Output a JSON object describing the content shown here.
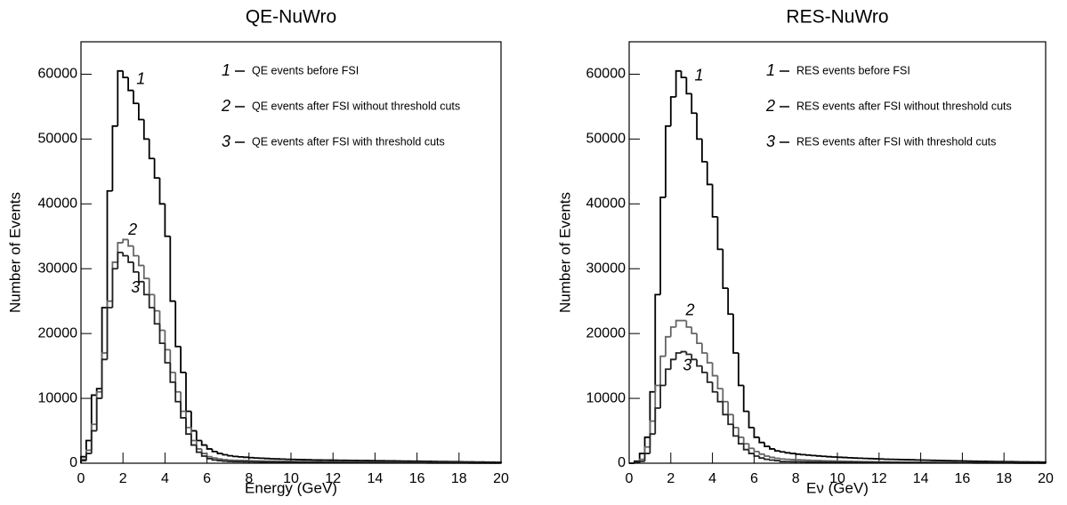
{
  "chart_data": [
    {
      "type": "histogram",
      "title": "QE-NuWro",
      "xlabel": "Energy (GeV)",
      "ylabel": "Number of Events",
      "xlim": [
        0,
        20
      ],
      "ylim": [
        0,
        65000
      ],
      "xticks": [
        0,
        2,
        4,
        6,
        8,
        10,
        12,
        14,
        16,
        18,
        20
      ],
      "yticks": [
        0,
        10000,
        20000,
        30000,
        40000,
        50000,
        60000
      ],
      "bins": [
        0,
        0.25,
        0.5,
        0.75,
        1,
        1.25,
        1.5,
        1.75,
        2,
        2.25,
        2.5,
        2.75,
        3,
        3.25,
        3.5,
        3.75,
        4,
        4.25,
        4.5,
        4.75,
        5,
        5.25,
        5.5,
        5.75,
        6,
        6.25,
        6.5,
        6.75,
        7,
        7.25,
        7.5,
        7.75,
        8,
        8.25,
        8.5,
        8.75,
        9,
        9.25,
        9.5,
        9.75,
        10,
        10.25,
        10.5,
        10.75,
        11,
        11.25,
        11.5,
        11.75,
        12,
        12.25,
        12.5,
        12.75,
        13,
        13.25,
        13.5,
        13.75,
        14,
        14.25,
        14.5,
        14.75,
        15,
        15.25,
        15.5,
        15.75,
        16,
        16.25,
        16.5,
        16.75,
        17,
        17.25,
        17.5,
        17.75,
        18,
        18.25,
        18.5,
        18.75,
        19,
        19.25,
        19.5,
        19.75,
        20
      ],
      "series": [
        {
          "name": "QE events before FSI",
          "label": "1",
          "color": "#000000",
          "values": [
            1000,
            3500,
            10500,
            11500,
            24000,
            42000,
            52000,
            60500,
            59500,
            57500,
            55500,
            53000,
            50000,
            47000,
            44000,
            40000,
            35000,
            25000,
            18000,
            14000,
            8000,
            5000,
            3500,
            2800,
            2200,
            1800,
            1500,
            1300,
            1150,
            1050,
            980,
            920,
            860,
            810,
            770,
            730,
            690,
            660,
            630,
            600,
            580,
            560,
            540,
            520,
            500,
            490,
            480,
            470,
            460,
            450,
            440,
            430,
            420,
            410,
            400,
            390,
            380,
            370,
            360,
            350,
            340,
            330,
            320,
            310,
            300,
            290,
            280,
            270,
            260,
            250,
            240,
            230,
            220,
            210,
            200,
            190,
            180,
            170,
            160,
            150
          ]
        },
        {
          "name": "QE events after FSI without threshold cuts",
          "label": "2",
          "color": "#666666",
          "values": [
            600,
            2000,
            6000,
            11000,
            17000,
            25000,
            31000,
            34000,
            34500,
            33500,
            32000,
            30500,
            28500,
            26000,
            23500,
            20500,
            17500,
            14000,
            11000,
            8000,
            5500,
            3500,
            2200,
            1500,
            1000,
            800,
            650,
            550,
            480,
            440,
            420,
            400,
            380,
            360,
            345,
            330,
            315,
            300,
            290,
            280,
            270,
            260,
            250,
            240,
            230,
            220,
            210,
            200,
            195,
            190,
            185,
            180,
            175,
            170,
            165,
            160,
            155,
            150,
            145,
            140,
            135,
            130,
            125,
            120,
            115,
            110,
            105,
            100,
            95,
            90,
            85,
            80,
            75,
            70,
            65,
            60,
            55,
            50,
            45,
            40
          ]
        },
        {
          "name": "QE events after FSI with threshold cuts",
          "label": "3",
          "color": "#222222",
          "values": [
            400,
            1500,
            5000,
            10000,
            16000,
            24000,
            30000,
            32500,
            32000,
            31000,
            29500,
            28000,
            26000,
            24000,
            21500,
            18500,
            15500,
            12500,
            9500,
            7000,
            4500,
            2800,
            1700,
            1100,
            700,
            500,
            400,
            330,
            280,
            250,
            240,
            230,
            220,
            210,
            200,
            190,
            180,
            170,
            165,
            160,
            155,
            150,
            145,
            140,
            135,
            130,
            125,
            120,
            115,
            110,
            105,
            100,
            96,
            92,
            88,
            84,
            80,
            76,
            72,
            68,
            64,
            60,
            57,
            54,
            51,
            48,
            45,
            42,
            40,
            38,
            36,
            34,
            32,
            30,
            28,
            26,
            24,
            22,
            20,
            18
          ]
        }
      ]
    },
    {
      "type": "histogram",
      "title": "RES-NuWro",
      "xlabel": "Eν (GeV)",
      "ylabel": "Number of Events",
      "xlim": [
        0,
        20
      ],
      "ylim": [
        0,
        65000
      ],
      "xticks": [
        0,
        2,
        4,
        6,
        8,
        10,
        12,
        14,
        16,
        18,
        20
      ],
      "yticks": [
        0,
        10000,
        20000,
        30000,
        40000,
        50000,
        60000
      ],
      "bins": [
        0,
        0.25,
        0.5,
        0.75,
        1,
        1.25,
        1.5,
        1.75,
        2,
        2.25,
        2.5,
        2.75,
        3,
        3.25,
        3.5,
        3.75,
        4,
        4.25,
        4.5,
        4.75,
        5,
        5.25,
        5.5,
        5.75,
        6,
        6.25,
        6.5,
        6.75,
        7,
        7.25,
        7.5,
        7.75,
        8,
        8.25,
        8.5,
        8.75,
        9,
        9.25,
        9.5,
        9.75,
        10,
        10.25,
        10.5,
        10.75,
        11,
        11.25,
        11.5,
        11.75,
        12,
        12.25,
        12.5,
        12.75,
        13,
        13.25,
        13.5,
        13.75,
        14,
        14.25,
        14.5,
        14.75,
        15,
        15.25,
        15.5,
        15.75,
        16,
        16.25,
        16.5,
        16.75,
        17,
        17.25,
        17.5,
        17.75,
        18,
        18.25,
        18.5,
        18.75,
        19,
        19.25,
        19.5,
        19.75,
        20
      ],
      "series": [
        {
          "name": "RES events before FSI",
          "label": "1",
          "color": "#000000",
          "values": [
            0,
            300,
            1500,
            4000,
            11000,
            26000,
            41000,
            52000,
            56500,
            60500,
            59500,
            57000,
            54000,
            50000,
            46500,
            43000,
            38000,
            33000,
            27000,
            23000,
            17000,
            12000,
            8000,
            5500,
            4000,
            3200,
            2600,
            2200,
            1900,
            1750,
            1600,
            1500,
            1400,
            1320,
            1250,
            1180,
            1120,
            1060,
            1000,
            960,
            920,
            880,
            840,
            800,
            770,
            740,
            710,
            680,
            650,
            620,
            600,
            580,
            560,
            540,
            520,
            500,
            480,
            460,
            440,
            420,
            400,
            385,
            370,
            355,
            340,
            325,
            310,
            295,
            280,
            270,
            260,
            250,
            240,
            230,
            220,
            210,
            200,
            190,
            180,
            170
          ]
        },
        {
          "name": "RES events after FSI without threshold cuts",
          "label": "2",
          "color": "#666666",
          "values": [
            0,
            100,
            600,
            2500,
            6500,
            12000,
            16500,
            19500,
            21000,
            22000,
            22000,
            21000,
            20000,
            18500,
            17000,
            15500,
            13500,
            11500,
            9500,
            7500,
            5500,
            4000,
            3000,
            2300,
            1800,
            1400,
            1100,
            900,
            750,
            650,
            600,
            560,
            520,
            490,
            460,
            430,
            400,
            380,
            360,
            340,
            320,
            300,
            285,
            270,
            255,
            240,
            230,
            220,
            210,
            200,
            190,
            180,
            170,
            160,
            150,
            145,
            140,
            135,
            130,
            125,
            120,
            115,
            110,
            105,
            100,
            95,
            90,
            85,
            80,
            75,
            70,
            65,
            60,
            55,
            50,
            45,
            40,
            35,
            30,
            25
          ]
        },
        {
          "name": "RES events after FSI with threshold cuts",
          "label": "3",
          "color": "#222222",
          "values": [
            0,
            50,
            300,
            1500,
            4500,
            8500,
            12000,
            14500,
            16000,
            17000,
            17200,
            16800,
            16000,
            15000,
            14000,
            12500,
            11000,
            9500,
            7500,
            6000,
            4200,
            3000,
            2100,
            1500,
            1100,
            800,
            600,
            480,
            400,
            250,
            240,
            230,
            220,
            210,
            200,
            190,
            180,
            170,
            165,
            160,
            155,
            150,
            145,
            140,
            135,
            130,
            125,
            120,
            115,
            110,
            105,
            100,
            96,
            92,
            88,
            84,
            80,
            76,
            72,
            68,
            64,
            60,
            57,
            54,
            51,
            48,
            45,
            42,
            40,
            38,
            36,
            34,
            32,
            30,
            28,
            26,
            24,
            22,
            20,
            18
          ]
        }
      ]
    }
  ]
}
